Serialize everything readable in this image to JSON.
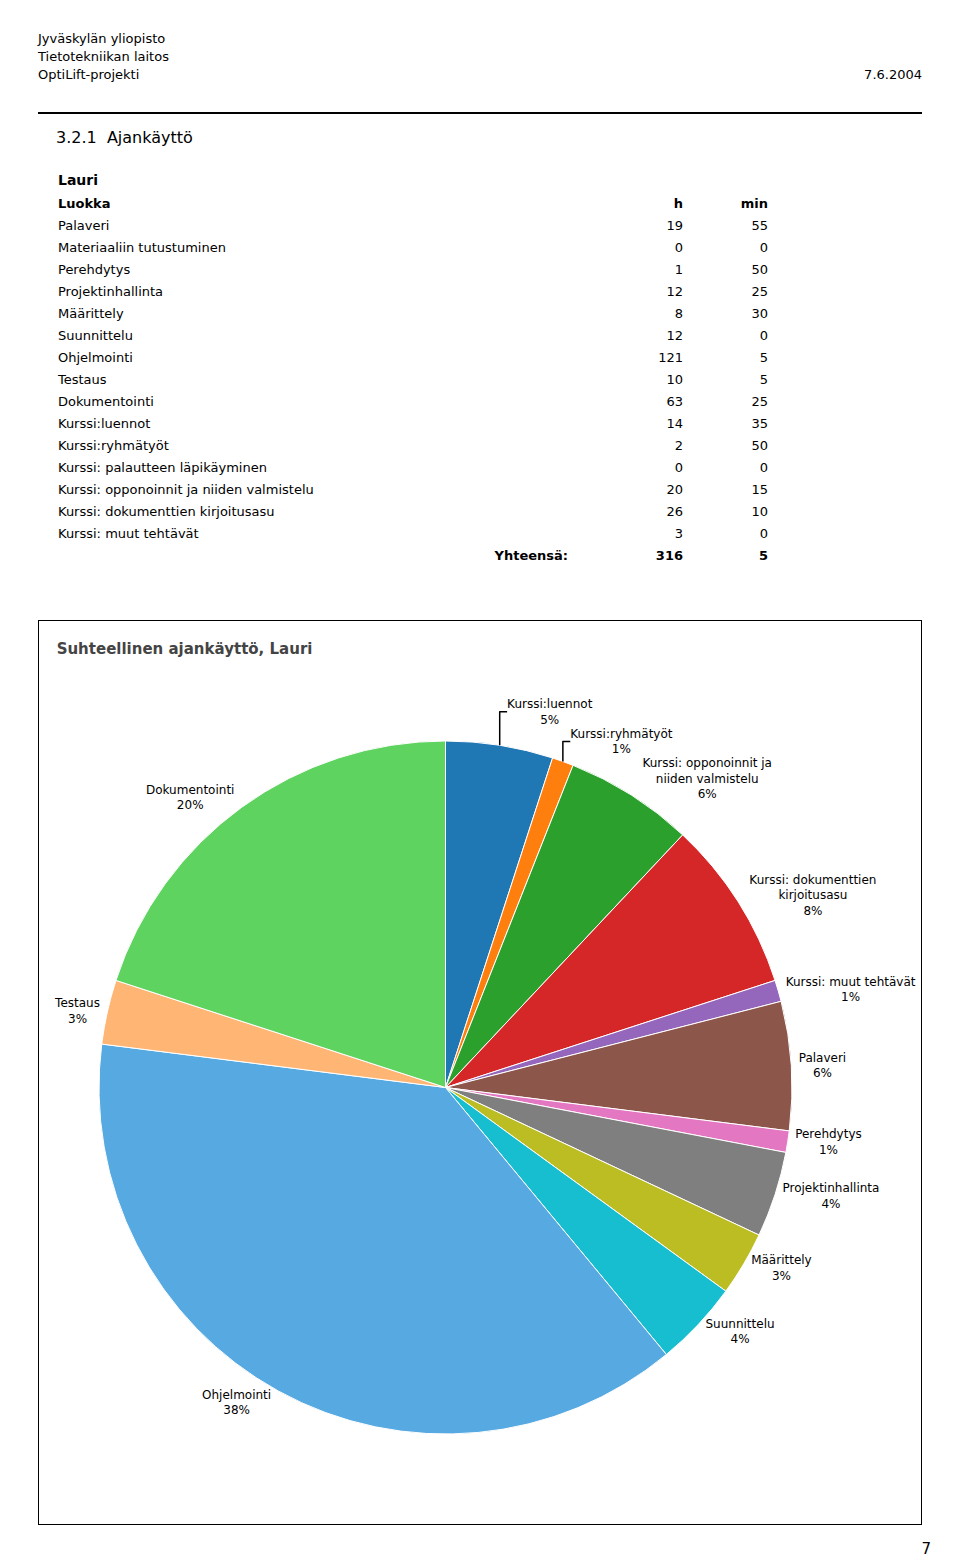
{
  "header_lines": [
    "Jyväskylän yliopisto",
    "Tietotekniikan laitos",
    "OptiLift-projekti"
  ],
  "header_date": "7.6.2004",
  "section_title": "3.2.1  Ajankäyttö",
  "person_name": "Lauri",
  "table": {
    "columns": [
      "Luokka",
      "h",
      "min"
    ],
    "rows": [
      [
        "Palaveri",
        19,
        55
      ],
      [
        "Materiaaliin tutustuminen",
        0,
        0
      ],
      [
        "Perehdytys",
        1,
        50
      ],
      [
        "Projektinhallinta",
        12,
        25
      ],
      [
        "Määrittely",
        8,
        30
      ],
      [
        "Suunnittelu",
        12,
        0
      ],
      [
        "Ohjelmointi",
        121,
        5
      ],
      [
        "Testaus",
        10,
        5
      ],
      [
        "Dokumentointi",
        63,
        25
      ],
      [
        "Kurssi:luennot",
        14,
        35
      ],
      [
        "Kurssi:ryhmätyöt",
        2,
        50
      ],
      [
        "Kurssi: palautteen läpikäyminen",
        0,
        0
      ],
      [
        "Kurssi: opponoinnit ja niiden valmistelu",
        20,
        15
      ],
      [
        "Kurssi: dokumenttien kirjoitusasu",
        26,
        10
      ],
      [
        "Kurssi: muut tehtävät",
        3,
        0
      ]
    ],
    "total": [
      "Yhteensä:",
      316,
      5
    ]
  },
  "page_number": "7",
  "chart_data": {
    "type": "pie",
    "title": "Suhteellinen ajankäyttö, Lauri",
    "categories": [
      "Kurssi:luennot",
      "Kurssi:ryhmätyöt",
      "Kurssi: opponoinnit ja\nniiden valmistelu",
      "Kurssi: dokumenttien\nkirjoitusasu",
      "Kurssi: muut tehtävät",
      "Palaveri",
      "Perehdytys",
      "Projektinhallinta",
      "Määrittely",
      "Suunnittelu",
      "Ohjelmointi",
      "Testaus",
      "Dokumentointi"
    ],
    "values": [
      5,
      1,
      6,
      8,
      1,
      6,
      1,
      4,
      3,
      4,
      38,
      3,
      20
    ],
    "value_labels": [
      "5%",
      "1%",
      "6%",
      "8%",
      "1%",
      "6%",
      "1%",
      "4%",
      "3%",
      "4%",
      "38%",
      "3%",
      "20%"
    ],
    "data_labels": true
  }
}
